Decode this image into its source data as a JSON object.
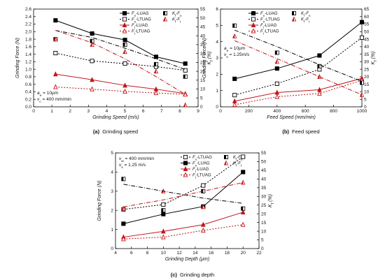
{
  "figure": {
    "captions": [
      {
        "label": "(a)",
        "text": "Grinding speed"
      },
      {
        "label": "(b)",
        "text": "Feed speed"
      },
      {
        "label": "(c)",
        "text": "Grinding depth"
      }
    ]
  },
  "colors": {
    "black": "#000000",
    "red": "#c0151b"
  },
  "chart_data": [
    {
      "type": "line",
      "panel": "(a)",
      "xlabel": "Grinding Speed (m/s)",
      "ylabel": "Grinding Force (N)",
      "y2label": "K_f (%)",
      "xlim": [
        0,
        9
      ],
      "ylim": [
        0,
        2.6
      ],
      "y2lim": [
        0,
        55
      ],
      "xticks": [
        0,
        1,
        2,
        3,
        4,
        5,
        6,
        7,
        8,
        9
      ],
      "yticks": [
        0.0,
        0.2,
        0.4,
        0.6,
        0.8,
        1.0,
        1.2,
        1.4,
        1.6,
        1.8,
        2.0,
        2.2,
        2.4,
        2.6
      ],
      "y2ticks": [
        0,
        5,
        10,
        15,
        20,
        25,
        30,
        35,
        40,
        45,
        50,
        55
      ],
      "legend_position": "top-right",
      "annotations": [
        "a_e = 10μm",
        "v_c = 400 mm/min"
      ],
      "x": [
        1.2,
        3.2,
        5.0,
        6.7,
        8.3
      ],
      "series": [
        {
          "name": "F_n-LUAG",
          "axis": "left",
          "values": [
            2.3,
            1.95,
            1.78,
            1.33,
            1.15
          ]
        },
        {
          "name": "F_n-LTUAG",
          "axis": "left",
          "values": [
            1.43,
            1.22,
            1.15,
            1.07,
            0.97
          ]
        },
        {
          "name": "F_t-LUAG",
          "axis": "left",
          "values": [
            0.87,
            0.72,
            0.57,
            0.47,
            0.35
          ]
        },
        {
          "name": "F_t-LTUAG",
          "axis": "left",
          "values": [
            0.53,
            0.47,
            0.41,
            0.37,
            0.33
          ]
        },
        {
          "name": "K_f-F_n",
          "axis": "right",
          "values": [
            38,
            37,
            35,
            24,
            17
          ]
        },
        {
          "name": "K_f-F_t",
          "axis": "right",
          "values": [
            38,
            35,
            31,
            20,
            1
          ]
        },
        {
          "name": "K_f-F_n trend",
          "axis": "right",
          "values": [
            43,
            39,
            33,
            27,
            21
          ]
        },
        {
          "name": "K_f-F_t trend",
          "axis": "right",
          "values": [
            43,
            36,
            27,
            17,
            7
          ]
        }
      ]
    },
    {
      "type": "line",
      "panel": "(b)",
      "xlabel": "Feed Speed (mm/min)",
      "ylabel": "Grinding Force (N)",
      "y2label": "K_f (%)",
      "xlim": [
        0,
        1000
      ],
      "ylim": [
        0,
        6
      ],
      "y2lim": [
        0,
        65
      ],
      "xticks": [
        0,
        200,
        400,
        600,
        800,
        1000
      ],
      "yticks": [
        0,
        1,
        2,
        3,
        4,
        5,
        6
      ],
      "y2ticks": [
        0,
        5,
        10,
        15,
        20,
        25,
        30,
        35,
        40,
        45,
        50,
        55,
        60,
        65
      ],
      "legend_position": "top-left",
      "annotations": [
        "a_e = 10μm",
        "v_s = 1.25m/s"
      ],
      "x": [
        100,
        400,
        700,
        1000
      ],
      "series": [
        {
          "name": "F_n-LUAG",
          "axis": "left",
          "values": [
            1.72,
            2.35,
            3.15,
            5.2
          ]
        },
        {
          "name": "F_n-LTUAG",
          "axis": "left",
          "values": [
            0.72,
            1.42,
            2.3,
            4.25
          ]
        },
        {
          "name": "F_t-LUAG",
          "axis": "left",
          "values": [
            0.35,
            0.88,
            1.05,
            1.75
          ]
        },
        {
          "name": "F_t-LTUAG",
          "axis": "left",
          "values": [
            0.13,
            0.62,
            0.82,
            1.63
          ]
        },
        {
          "name": "K_f-F_n",
          "axis": "right",
          "values": [
            54,
            36,
            27,
            16
          ]
        },
        {
          "name": "K_f-F_t",
          "axis": "right",
          "values": [
            47,
            30,
            20,
            8
          ]
        },
        {
          "name": "K_f-F_n trend",
          "axis": "right",
          "values": [
            51,
            40,
            28,
            17
          ]
        },
        {
          "name": "K_f-F_t trend",
          "axis": "right",
          "values": [
            44,
            32,
            20,
            8
          ]
        }
      ]
    },
    {
      "type": "line",
      "panel": "(c)",
      "xlabel": "Grinding Depth (μm)",
      "ylabel": "Grinding Force (N)",
      "y2label": "K_f (%)",
      "xlim": [
        4,
        22
      ],
      "ylim": [
        0,
        5
      ],
      "y2lim": [
        0,
        55
      ],
      "xticks": [
        4,
        6,
        8,
        10,
        12,
        14,
        16,
        18,
        20,
        22
      ],
      "yticks": [
        0,
        1,
        2,
        3,
        4,
        5
      ],
      "y2ticks": [
        0,
        5,
        10,
        15,
        20,
        25,
        30,
        35,
        40,
        45,
        50,
        55
      ],
      "legend_position": "top-right",
      "annotations": [
        "v_w = 400 mm/min",
        "v_s = 1.25 m/s"
      ],
      "x": [
        5,
        10,
        15,
        20
      ],
      "series": [
        {
          "name": "F_n-LTUAG",
          "axis": "left",
          "values": [
            2.05,
            2.3,
            3.3,
            4.8
          ]
        },
        {
          "name": "F_n-LUAG",
          "axis": "left",
          "values": [
            1.3,
            1.8,
            2.2,
            4.0
          ]
        },
        {
          "name": "F_t-LUAG",
          "axis": "left",
          "values": [
            0.6,
            0.9,
            1.25,
            1.9
          ]
        },
        {
          "name": "F_t-LTUAG",
          "axis": "left",
          "values": [
            0.5,
            0.6,
            0.95,
            1.25
          ]
        },
        {
          "name": "K_f-F_n",
          "axis": "right",
          "values": [
            40,
            22,
            33,
            23
          ]
        },
        {
          "name": "K_f-F_t",
          "axis": "right",
          "values": [
            23,
            33,
            24,
            38
          ]
        },
        {
          "name": "K_f-F_n trend",
          "axis": "right",
          "values": [
            37,
            33,
            29,
            26
          ]
        },
        {
          "name": "K_f-F_t trend",
          "axis": "right",
          "values": [
            24,
            28,
            33,
            38
          ]
        }
      ]
    }
  ]
}
